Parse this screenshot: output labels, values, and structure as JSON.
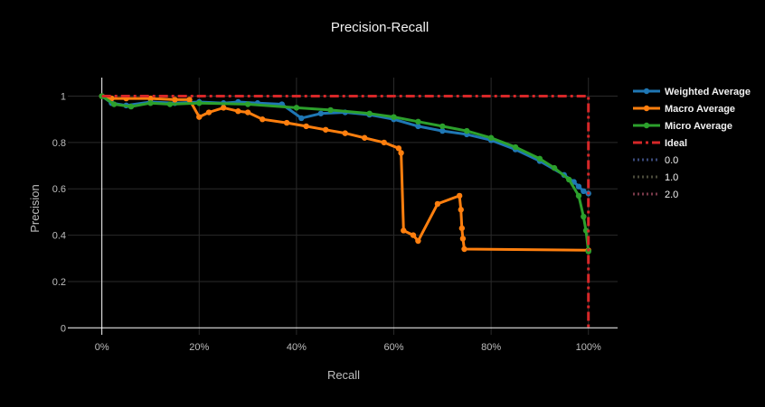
{
  "chart_data": {
    "type": "line",
    "title": "Precision-Recall",
    "xlabel": "Recall",
    "ylabel": "Precision",
    "xlim": [
      -0.07,
      1.06
    ],
    "ylim": [
      -0.03,
      1.08
    ],
    "grid": true,
    "legend_position": "right",
    "x_ticks": [
      0,
      0.2,
      0.4,
      0.6,
      0.8,
      1.0
    ],
    "x_tick_labels": [
      "0%",
      "20%",
      "40%",
      "60%",
      "80%",
      "100%"
    ],
    "y_ticks": [
      0,
      0.2,
      0.4,
      0.6,
      0.8,
      1.0
    ],
    "y_tick_labels": [
      "0",
      "0.2",
      "0.4",
      "0.6",
      "0.8",
      "1"
    ],
    "series": [
      {
        "name": "Weighted Average",
        "color": "#1f77b4",
        "style": "solid-markers",
        "x": [
          0.0,
          0.02,
          0.05,
          0.1,
          0.15,
          0.2,
          0.25,
          0.28,
          0.32,
          0.37,
          0.41,
          0.45,
          0.5,
          0.55,
          0.6,
          0.65,
          0.7,
          0.75,
          0.8,
          0.85,
          0.9,
          0.95,
          0.97,
          0.98,
          0.99,
          1.0
        ],
        "y": [
          1.0,
          0.97,
          0.96,
          0.975,
          0.97,
          0.975,
          0.97,
          0.975,
          0.97,
          0.965,
          0.905,
          0.925,
          0.93,
          0.92,
          0.9,
          0.87,
          0.85,
          0.835,
          0.81,
          0.77,
          0.72,
          0.66,
          0.63,
          0.61,
          0.59,
          0.58
        ]
      },
      {
        "name": "Macro Average",
        "color": "#ff7f0e",
        "style": "solid-markers",
        "x": [
          0.0,
          0.02,
          0.05,
          0.1,
          0.15,
          0.18,
          0.2,
          0.22,
          0.25,
          0.28,
          0.3,
          0.33,
          0.38,
          0.42,
          0.46,
          0.5,
          0.54,
          0.58,
          0.61,
          0.615,
          0.62,
          0.64,
          0.65,
          0.69,
          0.735,
          0.738,
          0.74,
          0.742,
          0.745,
          1.0
        ],
        "y": [
          1.0,
          0.99,
          0.99,
          0.99,
          0.985,
          0.985,
          0.91,
          0.93,
          0.95,
          0.935,
          0.93,
          0.9,
          0.885,
          0.87,
          0.855,
          0.84,
          0.82,
          0.8,
          0.775,
          0.755,
          0.42,
          0.4,
          0.375,
          0.535,
          0.57,
          0.51,
          0.43,
          0.385,
          0.34,
          0.335
        ]
      },
      {
        "name": "Micro Average",
        "color": "#2ca02c",
        "style": "solid-markers",
        "x": [
          0.0,
          0.025,
          0.06,
          0.1,
          0.14,
          0.2,
          0.3,
          0.4,
          0.47,
          0.55,
          0.6,
          0.65,
          0.7,
          0.75,
          0.8,
          0.85,
          0.9,
          0.93,
          0.96,
          0.98,
          0.99,
          0.995,
          1.0
        ],
        "y": [
          1.0,
          0.965,
          0.955,
          0.97,
          0.965,
          0.97,
          0.965,
          0.95,
          0.94,
          0.925,
          0.91,
          0.89,
          0.87,
          0.85,
          0.82,
          0.78,
          0.73,
          0.69,
          0.64,
          0.57,
          0.48,
          0.42,
          0.33
        ]
      },
      {
        "name": "Ideal",
        "color": "#d62728",
        "style": "dashdot",
        "x": [
          0.0,
          1.0,
          1.0
        ],
        "y": [
          1.0,
          1.0,
          0.0
        ]
      },
      {
        "name": "0.0",
        "color": "#3a4a7a",
        "style": "dot",
        "x": [],
        "y": []
      },
      {
        "name": "1.0",
        "color": "#4a4a3a",
        "style": "dot",
        "x": [],
        "y": []
      },
      {
        "name": "2.0",
        "color": "#7a3a4a",
        "style": "dot",
        "x": [],
        "y": []
      }
    ]
  }
}
